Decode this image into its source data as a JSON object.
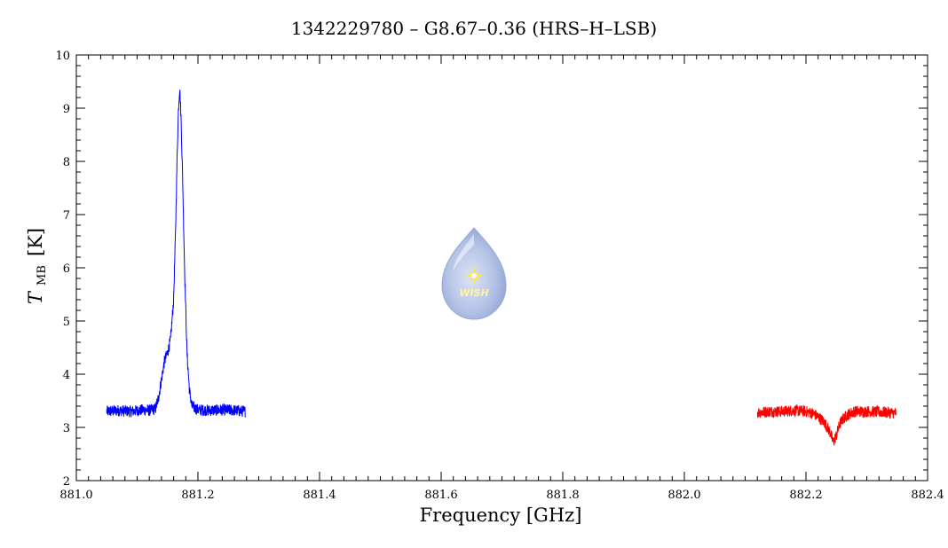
{
  "chart_data": {
    "type": "line",
    "title": "1342229780 – G8.67–0.36 (HRS–H–LSB)",
    "xlabel": "Frequency [GHz]",
    "ylabel_main": "T",
    "ylabel_sub": "MB",
    "ylabel_unit": "[K]",
    "xlim": [
      881.0,
      882.4
    ],
    "ylim": [
      2,
      10
    ],
    "xticks": [
      "881.0",
      "881.2",
      "881.4",
      "881.6",
      "881.8",
      "882.0",
      "882.2",
      "882.4"
    ],
    "yticks": [
      "2",
      "3",
      "4",
      "5",
      "6",
      "7",
      "8",
      "9",
      "10"
    ],
    "grid": false,
    "series": [
      {
        "color": "#0000ff",
        "x": [
          881.05,
          881.07,
          881.09,
          881.11,
          881.12,
          881.13,
          881.135,
          881.14,
          881.145,
          881.15,
          881.155,
          881.16,
          881.163,
          881.166,
          881.168,
          881.17,
          881.172,
          881.175,
          881.178,
          881.182,
          881.186,
          881.19,
          881.2,
          881.22,
          881.24,
          881.26,
          881.278
        ],
        "y": [
          3.3,
          3.32,
          3.3,
          3.33,
          3.32,
          3.35,
          3.55,
          3.9,
          4.25,
          4.4,
          4.65,
          5.4,
          6.6,
          8.2,
          9.0,
          9.4,
          8.9,
          7.6,
          6.0,
          4.4,
          3.7,
          3.4,
          3.33,
          3.32,
          3.33,
          3.32,
          3.3
        ]
      },
      {
        "color": "#ff0000",
        "x": [
          882.12,
          882.14,
          882.16,
          882.18,
          882.2,
          882.21,
          882.22,
          882.23,
          882.24,
          882.245,
          882.25,
          882.255,
          882.26,
          882.27,
          882.28,
          882.3,
          882.32,
          882.348
        ],
        "y": [
          3.28,
          3.3,
          3.3,
          3.32,
          3.3,
          3.27,
          3.2,
          3.1,
          2.9,
          2.72,
          2.85,
          3.05,
          3.15,
          3.25,
          3.3,
          3.3,
          3.29,
          3.27
        ]
      }
    ]
  },
  "logo": {
    "text": "WISH",
    "fill_color": "#b8c6e8",
    "star_color": "#ffe640"
  }
}
